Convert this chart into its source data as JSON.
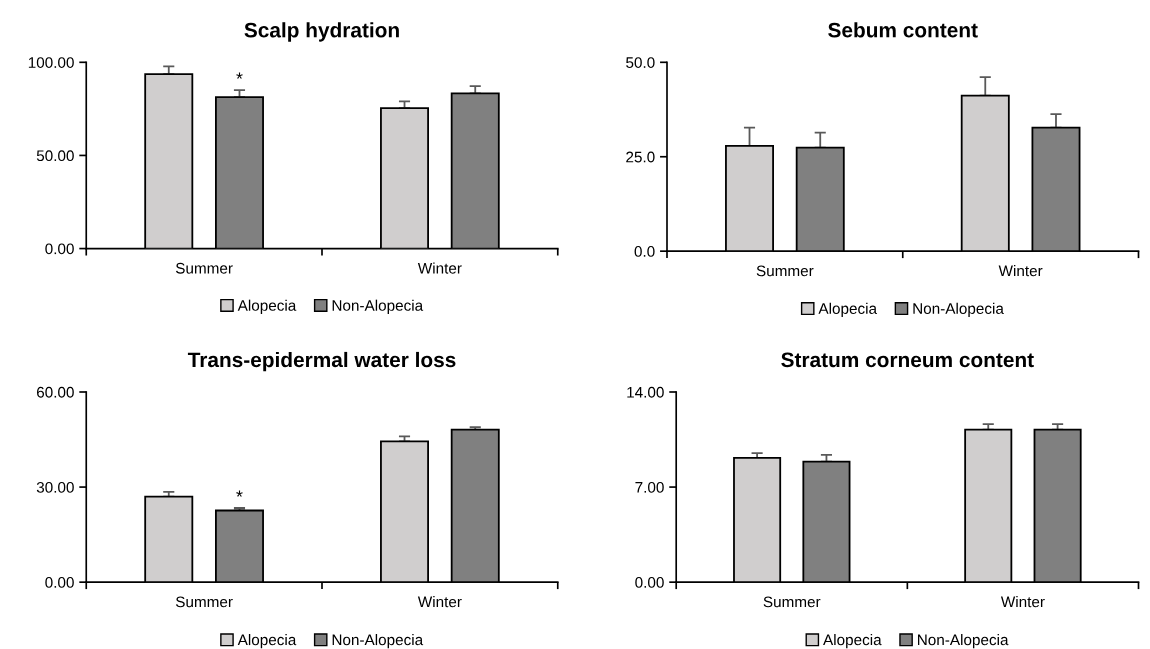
{
  "chart_data": [
    {
      "type": "bar",
      "title": "Scalp hydration",
      "categories": [
        "Summer",
        "Winter"
      ],
      "ylim": [
        0,
        100
      ],
      "yticks": [
        {
          "value": 0,
          "label": "0.00"
        },
        {
          "value": 50,
          "label": "50.00"
        },
        {
          "value": 100,
          "label": "100.00"
        }
      ],
      "legend": "bottom",
      "grid": false,
      "series": [
        {
          "name": "Alopecia",
          "color": "#d0cece",
          "values": [
            93.7,
            75.4
          ],
          "errors": [
            [
              93.7,
              97.8
            ],
            [
              75.4,
              79.0
            ]
          ]
        },
        {
          "name": "Non-Alopecia",
          "color": "#808080",
          "values": [
            81.3,
            83.3
          ],
          "errors": [
            [
              81.3,
              85.1
            ],
            [
              83.3,
              87.2
            ]
          ]
        }
      ],
      "annotations": [
        "*"
      ]
    },
    {
      "type": "bar",
      "title": "Sebum content",
      "categories": [
        "Summer",
        "Winter"
      ],
      "ylim": [
        0,
        50
      ],
      "yticks": [
        {
          "value": 0,
          "label": "0.0"
        },
        {
          "value": 25,
          "label": "25.0"
        },
        {
          "value": 50,
          "label": "50.0"
        }
      ],
      "legend": "bottom",
      "grid": false,
      "series": [
        {
          "name": "Alopecia",
          "color": "#d0cece",
          "values": [
            27.9,
            41.2
          ],
          "errors": [
            [
              27.9,
              32.7
            ],
            [
              41.2,
              46.1
            ]
          ]
        },
        {
          "name": "Non-Alopecia",
          "color": "#808080",
          "values": [
            27.4,
            32.7
          ],
          "errors": [
            [
              27.4,
              31.4
            ],
            [
              32.7,
              36.3
            ]
          ]
        }
      ]
    },
    {
      "type": "bar",
      "title": "Trans-epidermal water loss",
      "categories": [
        "Summer",
        "Winter"
      ],
      "ylim": [
        0,
        60
      ],
      "yticks": [
        {
          "value": 0,
          "label": "0.00"
        },
        {
          "value": 30,
          "label": "30.00"
        },
        {
          "value": 60,
          "label": "60.00"
        }
      ],
      "legend": "bottom",
      "grid": false,
      "series": [
        {
          "name": "Alopecia",
          "color": "#d0cece",
          "values": [
            27.0,
            44.4
          ],
          "errors": [
            [
              27.0,
              28.5
            ],
            [
              44.4,
              46.0
            ]
          ]
        },
        {
          "name": "Non-Alopecia",
          "color": "#808080",
          "values": [
            22.6,
            48.1
          ],
          "errors": [
            [
              22.6,
              23.4
            ],
            [
              48.1,
              48.9
            ]
          ]
        }
      ],
      "annotations": [
        "*"
      ]
    },
    {
      "type": "bar",
      "title": "Stratum corneum content",
      "categories": [
        "Summer",
        "Winter"
      ],
      "ylim": [
        0,
        14
      ],
      "yticks": [
        {
          "value": 0,
          "label": "0.00"
        },
        {
          "value": 7,
          "label": "7.00"
        },
        {
          "value": 14,
          "label": "14.00"
        }
      ],
      "legend": "bottom",
      "grid": false,
      "series": [
        {
          "name": "Alopecia",
          "color": "#d0cece",
          "values": [
            9.15,
            11.23
          ],
          "errors": [
            [
              9.15,
              9.5
            ],
            [
              11.23,
              11.64
            ]
          ]
        },
        {
          "name": "Non-Alopecia",
          "color": "#808080",
          "values": [
            8.88,
            11.23
          ],
          "errors": [
            [
              8.88,
              9.37
            ],
            [
              11.23,
              11.64
            ]
          ]
        }
      ]
    }
  ]
}
